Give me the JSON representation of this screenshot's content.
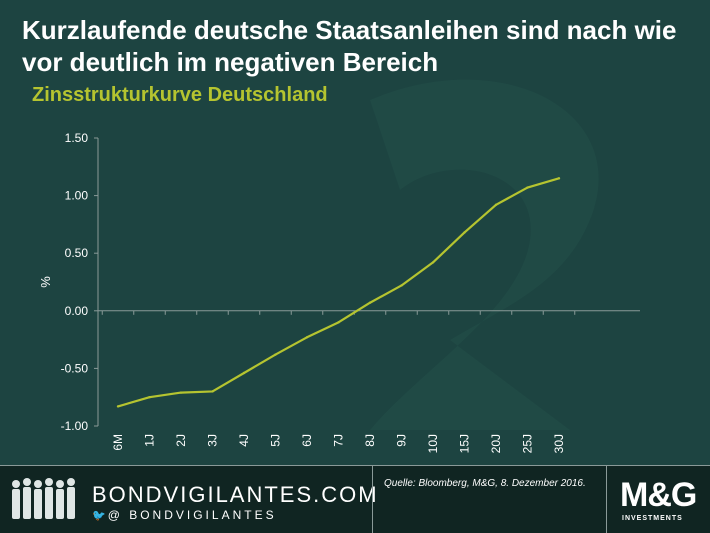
{
  "header": {
    "title": "Kurzlaufende deutsche Staatsanleihen sind nach wie vor deutlich im negativen Bereich",
    "subtitle": "Zinsstrukturkurve Deutschland"
  },
  "chart_data": {
    "type": "line",
    "categories": [
      "6M",
      "1J",
      "2J",
      "3J",
      "4J",
      "5J",
      "6J",
      "7J",
      "8J",
      "9J",
      "10J",
      "15J",
      "20J",
      "25J",
      "30J"
    ],
    "series": [
      {
        "values": [
          -0.83,
          -0.75,
          -0.71,
          -0.7,
          -0.54,
          -0.38,
          -0.23,
          -0.1,
          0.07,
          0.22,
          0.42,
          0.68,
          0.92,
          1.07,
          1.15
        ]
      }
    ],
    "ylabel": "%",
    "xlabel": "",
    "yticks": [
      "1.50",
      "1.00",
      "0.50",
      "0.00",
      "-0.50",
      "-1.00"
    ],
    "ylim": [
      -1.0,
      1.5
    ],
    "line_color": "#b5c430",
    "grid": false
  },
  "footer": {
    "brand": "BONDVIGILANTES.COM",
    "handle": "@ BONDVIGILANTES",
    "twitter_icon": "twitter-icon",
    "source": "Quelle: Bloomberg, M&G, 8. Dezember 2016.",
    "logo": "M&G",
    "logo_sub": "INVESTMENTS"
  }
}
